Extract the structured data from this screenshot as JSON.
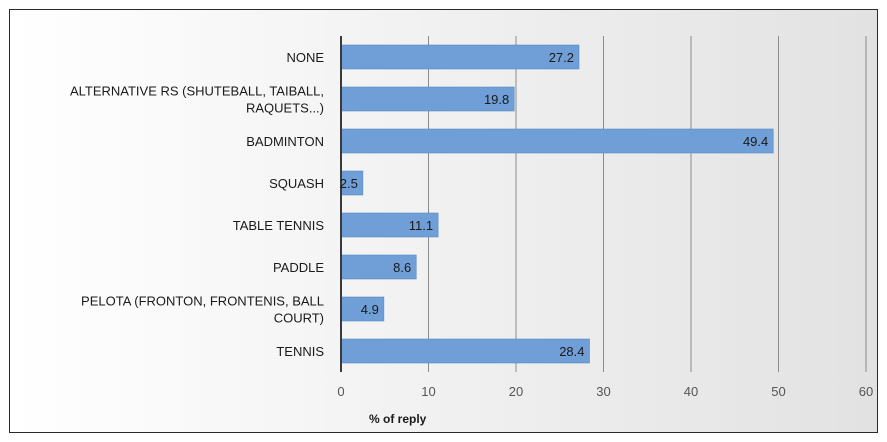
{
  "chart_data": {
    "type": "bar",
    "orientation": "horizontal",
    "categories": [
      "NONE",
      "ALTERNATIVE RS (SHUTEBALL, TAIBALL, RAQUETS...)",
      "BADMINTON",
      "SQUASH",
      "TABLE TENNIS",
      "PADDLE",
      "PELOTA (FRONTON, FRONTENIS, BALL COURT)",
      "TENNIS"
    ],
    "category_label_lines": [
      [
        "NONE"
      ],
      [
        "ALTERNATIVE RS (SHUTEBALL, TAIBALL,",
        "RAQUETS...)"
      ],
      [
        "BADMINTON"
      ],
      [
        "SQUASH"
      ],
      [
        "TABLE TENNIS"
      ],
      [
        "PADDLE"
      ],
      [
        "PELOTA (FRONTON, FRONTENIS, BALL",
        "COURT)"
      ],
      [
        "TENNIS"
      ]
    ],
    "values": [
      27.2,
      19.8,
      49.4,
      2.5,
      11.1,
      8.6,
      4.9,
      28.4
    ],
    "data_labels": [
      "27.2",
      "19.8",
      "49.4",
      "2.5",
      "11.1",
      "8.6",
      "4.9",
      "28.4"
    ],
    "xlabel": "% of reply",
    "ylabel": "",
    "xlim": [
      0,
      60
    ],
    "xticks": [
      0,
      10,
      20,
      30,
      40,
      50,
      60
    ],
    "grid": true,
    "legend": "none",
    "colors": {
      "bar": "#6f9fd6",
      "bar_edge": "#5b8ac2",
      "grid": "#8c8c8c",
      "text": "#1a1a1a",
      "axis": "#3a3a3a"
    }
  }
}
